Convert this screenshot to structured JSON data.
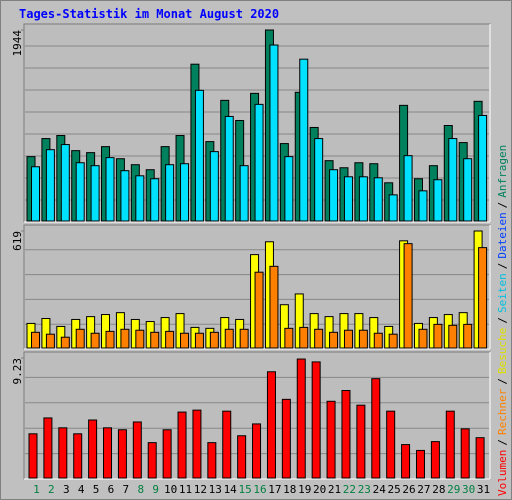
{
  "chart_data": {
    "type": "bar",
    "title": "Tages-Statistik im Monat August 2020",
    "categories": [
      "1",
      "2",
      "3",
      "4",
      "5",
      "6",
      "7",
      "8",
      "9",
      "10",
      "11",
      "12",
      "13",
      "14",
      "15",
      "16",
      "17",
      "18",
      "19",
      "20",
      "21",
      "22",
      "23",
      "24",
      "25",
      "26",
      "27",
      "28",
      "29",
      "30",
      "31"
    ],
    "category_colors": [
      "#008040",
      "#008040",
      "#000000",
      "#000000",
      "#000000",
      "#000000",
      "#000000",
      "#008040",
      "#008040",
      "#000000",
      "#000000",
      "#000000",
      "#000000",
      "#000000",
      "#008040",
      "#008040",
      "#000000",
      "#000000",
      "#000000",
      "#000000",
      "#000000",
      "#008040",
      "#008040",
      "#000000",
      "#000000",
      "#000000",
      "#000000",
      "#000000",
      "#008040",
      "#008040",
      "#000000"
    ],
    "panels": [
      {
        "ylim": [
          0,
          1944
        ],
        "yticks": [
          1944
        ],
        "series": [
          {
            "color": "#00805c",
            "values": [
              655,
              839,
              870,
              716,
              696,
              757,
              634,
              573,
              522,
              757,
              870,
              1596,
              808,
              1228,
              1023,
              1299,
              1944,
              788,
              1310,
              952,
              614,
              542,
              593,
              583,
              389,
              1177,
              430,
              563,
              972,
              798,
              1218
            ]
          },
          {
            "color": "#00e0ff",
            "values": [
              552,
              726,
              778,
              593,
              563,
              645,
              512,
              460,
              430,
              573,
              583,
              1330,
              706,
              1064,
              563,
              1187,
              1791,
              655,
              1647,
              839,
              522,
              450,
              450,
              440,
              266,
              665,
              307,
              420,
              839,
              634,
              1074
            ]
          }
        ]
      },
      {
        "ylim": [
          0,
          619
        ],
        "yticks": [
          619
        ],
        "series": [
          {
            "color": "#ffff00",
            "values": [
              130,
              156,
              114,
              151,
              166,
              177,
              187,
              151,
              140,
              161,
              182,
              109,
              104,
              161,
              151,
              494,
              562,
              229,
              286,
              182,
              166,
              182,
              182,
              161,
              114,
              567,
              130,
              161,
              177,
              187,
              619
            ]
          },
          {
            "color": "#ff8000",
            "values": [
              83,
              73,
              57,
              99,
              78,
              88,
              99,
              94,
              83,
              88,
              78,
              78,
              83,
              99,
              99,
              401,
              432,
              104,
              109,
              99,
              83,
              94,
              94,
              78,
              73,
              552,
              99,
              125,
              120,
              125,
              531
            ]
          }
        ]
      },
      {
        "ylim": [
          0,
          9.23
        ],
        "yticks": [
          9.23
        ],
        "series": [
          {
            "color": "#ff0000",
            "values": [
              3.4,
              4.62,
              3.86,
              3.4,
              4.46,
              3.86,
              3.71,
              4.31,
              2.72,
              3.71,
              5.07,
              5.22,
              2.72,
              5.14,
              3.25,
              4.16,
              8.17,
              6.05,
              9.15,
              8.93,
              5.9,
              6.73,
              5.6,
              7.64,
              5.14,
              2.57,
              2.12,
              2.8,
              5.14,
              3.78,
              3.1
            ]
          }
        ]
      }
    ],
    "legend": [
      {
        "name": "Volumen",
        "color": "#ff0000"
      },
      {
        "name": "Rechner",
        "color": "#ff8000"
      },
      {
        "name": "Besuche",
        "color": "#e0e000"
      },
      {
        "name": "Seiten",
        "color": "#00c0e0"
      },
      {
        "name": "Dateien",
        "color": "#0040ff"
      },
      {
        "name": "Anfragen",
        "color": "#00805c"
      }
    ],
    "legend_separator": "/"
  }
}
